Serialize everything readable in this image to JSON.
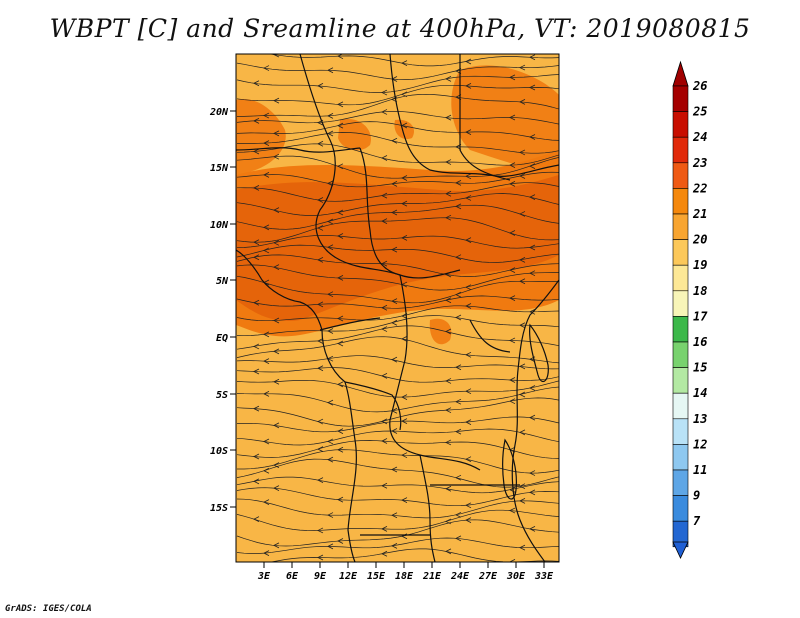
{
  "title": "WBPT [C] and Sreamline at 400hPa, VT: 2019080815",
  "credit": "GrADS: IGES/COLA",
  "map": {
    "variable": "WBPT",
    "units": "C",
    "level": "400hPa",
    "valid_time": "2019080815",
    "lon_labels": [
      "3E",
      "6E",
      "9E",
      "12E",
      "15E",
      "18E",
      "21E",
      "24E",
      "27E",
      "30E",
      "33E"
    ],
    "lat_labels": [
      "20N",
      "15N",
      "10N",
      "5N",
      "EQ",
      "5S",
      "10S",
      "15S"
    ],
    "colors": {
      "base": "#f8b646",
      "warm": "#f07a10",
      "hot": "#e5640a",
      "coast": "#111111",
      "stream": "#222222"
    }
  },
  "colorbar": {
    "labels": [
      "26",
      "25",
      "24",
      "23",
      "22",
      "21",
      "20",
      "19",
      "18",
      "17",
      "16",
      "15",
      "14",
      "13",
      "12",
      "11",
      "9",
      "7"
    ],
    "colors": [
      "#a50000",
      "#c80e00",
      "#e12a0a",
      "#ef5a14",
      "#f5880c",
      "#f8a531",
      "#fcc85a",
      "#fde896",
      "#f8f5b8",
      "#3cb84a",
      "#78d26e",
      "#b3e9a3",
      "#e6f7f4",
      "#b9e2f7",
      "#8ec8f0",
      "#5ea6e6",
      "#3a8bde",
      "#2367d2"
    ],
    "top_color": "#a00000",
    "bottom_color": "#1f5fd4"
  }
}
